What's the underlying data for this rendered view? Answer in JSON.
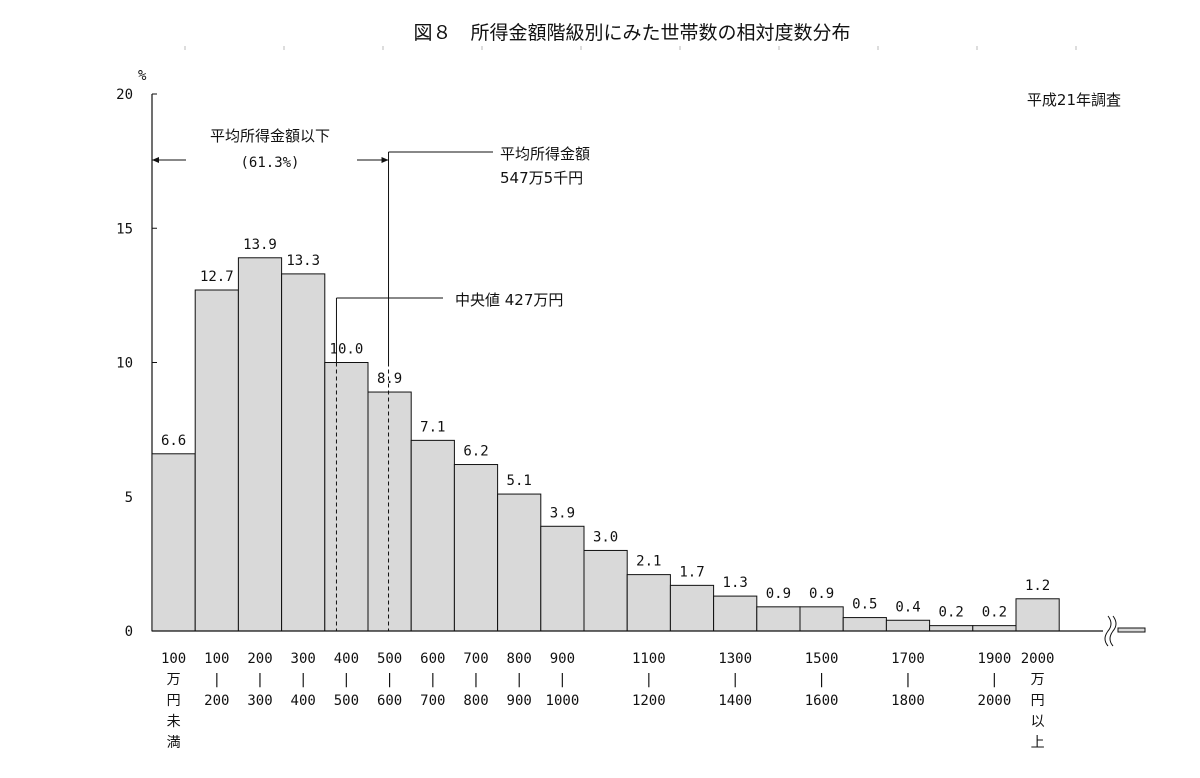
{
  "title": "図８　所得金額階級別にみた世帯数の相対度数分布",
  "survey_note": "平成21年調査",
  "y_unit": "%",
  "annotations": {
    "below_mean_label": "平均所得金額以下",
    "below_mean_pct": "(61.3%)",
    "mean_label": "平均所得金額",
    "mean_value": "547万5千円",
    "median_label": "中央値 427万円"
  },
  "chart_data": {
    "type": "bar",
    "title": "図８　所得金額階級別にみた世帯数の相対度数分布",
    "ylabel": "%",
    "ylim": [
      0,
      20
    ],
    "yticks": [
      0,
      5,
      10,
      15,
      20
    ],
    "mean": 547.5,
    "median": 427,
    "categories": [
      {
        "top": "100",
        "rest": [
          "万",
          "円",
          "未",
          "満"
        ],
        "value": 6.6,
        "label": "6.6"
      },
      {
        "top": "100",
        "rest": [
          "|",
          "200"
        ],
        "value": 12.7,
        "label": "12.7"
      },
      {
        "top": "200",
        "rest": [
          "|",
          "300"
        ],
        "value": 13.9,
        "label": "13.9"
      },
      {
        "top": "300",
        "rest": [
          "|",
          "400"
        ],
        "value": 13.3,
        "label": "13.3"
      },
      {
        "top": "400",
        "rest": [
          "|",
          "500"
        ],
        "value": 10.0,
        "label": "10.0"
      },
      {
        "top": "500",
        "rest": [
          "|",
          "600"
        ],
        "value": 8.9,
        "label": "8.9"
      },
      {
        "top": "600",
        "rest": [
          "|",
          "700"
        ],
        "value": 7.1,
        "label": "7.1"
      },
      {
        "top": "700",
        "rest": [
          "|",
          "800"
        ],
        "value": 6.2,
        "label": "6.2"
      },
      {
        "top": "800",
        "rest": [
          "|",
          "900"
        ],
        "value": 5.1,
        "label": "5.1"
      },
      {
        "top": "900",
        "rest": [
          "|",
          "1000"
        ],
        "value": 3.9,
        "label": "3.9"
      },
      {
        "top": "",
        "rest": [],
        "value": 3.0,
        "label": "3.0"
      },
      {
        "top": "1100",
        "rest": [
          "|",
          "1200"
        ],
        "value": 2.1,
        "label": "2.1"
      },
      {
        "top": "",
        "rest": [],
        "value": 1.7,
        "label": "1.7"
      },
      {
        "top": "1300",
        "rest": [
          "|",
          "1400"
        ],
        "value": 1.3,
        "label": "1.3"
      },
      {
        "top": "",
        "rest": [],
        "value": 0.9,
        "label": "0.9"
      },
      {
        "top": "1500",
        "rest": [
          "|",
          "1600"
        ],
        "value": 0.9,
        "label": "0.9"
      },
      {
        "top": "",
        "rest": [],
        "value": 0.5,
        "label": "0.5"
      },
      {
        "top": "1700",
        "rest": [
          "|",
          "1800"
        ],
        "value": 0.4,
        "label": "0.4"
      },
      {
        "top": "",
        "rest": [],
        "value": 0.2,
        "label": "0.2"
      },
      {
        "top": "1900",
        "rest": [
          "|",
          "2000"
        ],
        "value": 0.2,
        "label": "0.2"
      },
      {
        "top": "2000",
        "rest": [
          "万",
          "円",
          "以",
          "上"
        ],
        "value": 1.2,
        "label": "1.2"
      }
    ]
  }
}
